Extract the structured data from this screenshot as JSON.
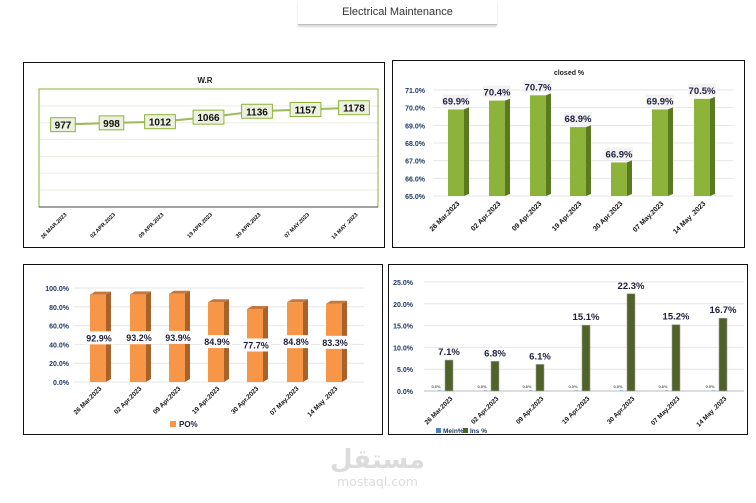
{
  "header": {
    "title": "Electrical Maintenance"
  },
  "watermark": {
    "arabic": "مستقل",
    "latin": "mostaql.com"
  },
  "chart_data": [
    {
      "type": "line",
      "title": "W.R",
      "categories": [
        "26 MAR.2023",
        "02 APR.2023",
        "09  APR.2023",
        "19 APR.2023",
        "30 APR.2023",
        "07 MAY.2023",
        "14 MAY .2023"
      ],
      "values": [
        977,
        998,
        1012,
        1066,
        1136,
        1157,
        1178
      ],
      "ylim": [
        0,
        1400
      ],
      "y_axis_visible": false,
      "grid": true,
      "colors": {
        "line": "#9bbb59",
        "label_fill": "#ebf1de",
        "label_border": "#8db33a",
        "plot_border": "#8db33a"
      }
    },
    {
      "type": "bar",
      "style": "3d",
      "title": "closed %",
      "categories": [
        "26 Mar.2023",
        "02 Apr.2023",
        "09  Apr.2023",
        "19 Apr.2023",
        "30 Apr.2023",
        "07 May.2023",
        "14 May .2023"
      ],
      "values": [
        69.9,
        70.4,
        70.7,
        68.9,
        66.9,
        69.9,
        70.5
      ],
      "data_labels": [
        "69.9%",
        "70.4%",
        "70.7%",
        "68.9%",
        "66.9%",
        "69.9%",
        "70.5%"
      ],
      "ylim": [
        65,
        71
      ],
      "yticks": [
        "65.0%",
        "66.0%",
        "67.0%",
        "68.0%",
        "69.0%",
        "70.0%",
        "71.0%"
      ],
      "grid": true,
      "colors": {
        "bar": "#8db33a",
        "side": "#5a7a22"
      }
    },
    {
      "type": "bar",
      "style": "3d",
      "title": "",
      "categories": [
        "26 Mar.2023",
        "02 Apr.2023",
        "09  Apr.2023",
        "19 Apr.2023",
        "30 Apr.2023",
        "07 May.2023",
        "14 May .2023"
      ],
      "series": [
        {
          "name": "PO%",
          "values": [
            92.9,
            93.2,
            93.9,
            84.9,
            77.7,
            84.8,
            83.3
          ]
        }
      ],
      "data_labels": [
        "92.9%",
        "93.2%",
        "93.9%",
        "84.9%",
        "77.7%",
        "84.8%",
        "83.3%"
      ],
      "ylim": [
        0,
        100
      ],
      "yticks": [
        "0.0%",
        "20.0%",
        "40.0%",
        "60.0%",
        "80.0%",
        "100.0%"
      ],
      "legend": "bottom",
      "grid": true,
      "colors": {
        "bar": "#f79646",
        "side": "#a8622a"
      }
    },
    {
      "type": "bar",
      "title": "",
      "categories": [
        "26 Mar.2023",
        "02 Apr.2023",
        "09  Apr.2023",
        "19 Apr.2023",
        "30 Apr.2023",
        "07 May.2023",
        "14 May .2023"
      ],
      "series": [
        {
          "name": "Mein%",
          "values": [
            0,
            0,
            0,
            0,
            0,
            0,
            0
          ],
          "data_labels": [
            "0.0%",
            "0.0%",
            "0.0%",
            "0.0%",
            "0.0%",
            "0.0%",
            "0.0%"
          ]
        },
        {
          "name": "Ins %",
          "values": [
            7.1,
            6.8,
            6.1,
            15.1,
            22.3,
            15.2,
            16.7
          ],
          "data_labels": [
            "7.1%",
            "6.8%",
            "6.1%",
            "15.1%",
            "22.3%",
            "15.2%",
            "16.7%"
          ]
        }
      ],
      "ylim": [
        0,
        25
      ],
      "yticks": [
        "0.0%",
        "5.0%",
        "10.0%",
        "15.0%",
        "20.0%",
        "25.0%"
      ],
      "legend": "bottom",
      "grid": true,
      "colors": {
        "Mein%": "#4f81bd",
        "Ins %": "#4f6228"
      }
    }
  ]
}
